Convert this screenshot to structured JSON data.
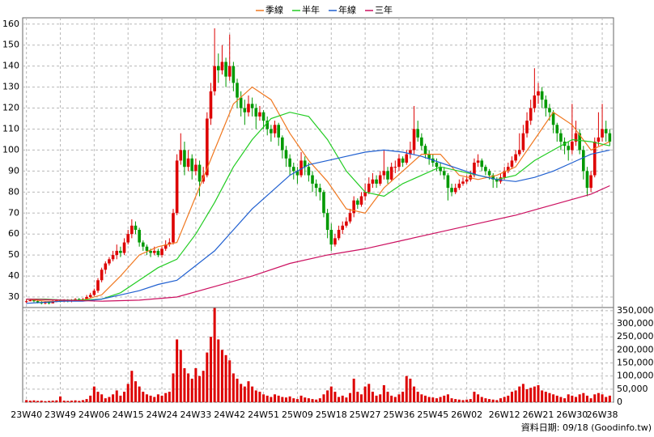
{
  "chart_data": {
    "type": "candlestick",
    "legend": "top",
    "grid": true,
    "up_color": "#dd0000",
    "down_color": "#009900",
    "xlim": [
      -1,
      156
    ],
    "xticks": [
      {
        "value": 0,
        "label": "23W40"
      },
      {
        "value": 9,
        "label": "23W49"
      },
      {
        "value": 18,
        "label": "24W06"
      },
      {
        "value": 27,
        "label": "24W15"
      },
      {
        "value": 36,
        "label": "24W24"
      },
      {
        "value": 45,
        "label": "24W33"
      },
      {
        "value": 54,
        "label": "24W42"
      },
      {
        "value": 63,
        "label": "24W51"
      },
      {
        "value": 72,
        "label": "25W09"
      },
      {
        "value": 81,
        "label": "25W18"
      },
      {
        "value": 90,
        "label": "25W27"
      },
      {
        "value": 99,
        "label": "25W36"
      },
      {
        "value": 108,
        "label": "25W45"
      },
      {
        "value": 117,
        "label": "26W02"
      },
      {
        "value": 127,
        "label": "26W12"
      },
      {
        "value": 136,
        "label": "26W21"
      },
      {
        "value": 145,
        "label": "26W30"
      },
      {
        "value": 153,
        "label": "26W38"
      }
    ],
    "ylim": [
      25,
      163
    ],
    "yticks": [
      30,
      40,
      50,
      60,
      70,
      80,
      90,
      100,
      110,
      120,
      130,
      140,
      150,
      160
    ],
    "candles": [
      [
        28,
        29,
        27,
        28
      ],
      [
        28,
        29,
        28,
        28.5
      ],
      [
        28.5,
        29,
        27.5,
        28
      ],
      [
        28,
        28.5,
        27,
        27.5
      ],
      [
        27.5,
        28,
        26.5,
        27
      ],
      [
        27,
        28,
        26.5,
        27.5
      ],
      [
        27.5,
        28,
        26.5,
        27
      ],
      [
        27,
        28.5,
        27,
        28
      ],
      [
        28,
        29,
        27.5,
        28.5
      ],
      [
        28.5,
        29,
        27.5,
        28
      ],
      [
        28,
        29,
        27.5,
        28.5
      ],
      [
        28.5,
        29,
        27.5,
        28
      ],
      [
        28,
        29,
        27.5,
        28.5
      ],
      [
        28.5,
        29.5,
        28,
        29
      ],
      [
        29,
        29.5,
        28,
        28.5
      ],
      [
        28.5,
        29.5,
        28,
        29
      ],
      [
        29,
        31,
        28.5,
        30
      ],
      [
        30,
        32,
        29.5,
        31
      ],
      [
        31,
        34,
        30.5,
        33
      ],
      [
        33,
        39,
        32,
        38
      ],
      [
        38,
        44,
        37,
        43
      ],
      [
        43,
        47,
        41,
        46
      ],
      [
        46,
        49,
        45,
        48
      ],
      [
        48,
        52,
        47,
        50
      ],
      [
        50,
        55,
        48,
        52
      ],
      [
        52,
        54,
        49,
        51
      ],
      [
        51,
        58,
        50,
        56
      ],
      [
        56,
        62,
        55,
        60
      ],
      [
        60,
        67,
        58,
        64
      ],
      [
        64,
        66,
        60,
        62
      ],
      [
        62,
        63,
        54,
        56
      ],
      [
        56,
        57,
        52,
        54
      ],
      [
        54,
        55,
        50,
        52
      ],
      [
        52,
        53,
        49,
        51
      ],
      [
        51,
        54,
        50,
        52
      ],
      [
        52,
        53,
        49,
        50
      ],
      [
        50,
        54,
        49,
        53
      ],
      [
        53,
        57,
        52,
        55
      ],
      [
        55,
        58,
        54,
        56
      ],
      [
        56,
        72,
        55,
        70
      ],
      [
        70,
        98,
        69,
        95
      ],
      [
        95,
        108,
        93,
        100
      ],
      [
        100,
        104,
        88,
        92
      ],
      [
        92,
        100,
        90,
        96
      ],
      [
        96,
        98,
        86,
        90
      ],
      [
        90,
        96,
        88,
        93
      ],
      [
        93,
        95,
        78,
        85
      ],
      [
        85,
        92,
        84,
        88
      ],
      [
        88,
        118,
        87,
        115
      ],
      [
        115,
        132,
        112,
        128
      ],
      [
        128,
        158,
        126,
        140
      ],
      [
        140,
        146,
        132,
        138
      ],
      [
        138,
        150,
        136,
        142
      ],
      [
        142,
        144,
        130,
        135
      ],
      [
        135,
        155,
        133,
        140
      ],
      [
        140,
        142,
        128,
        132
      ],
      [
        132,
        134,
        120,
        125
      ],
      [
        125,
        128,
        116,
        120
      ],
      [
        120,
        124,
        112,
        118
      ],
      [
        118,
        126,
        116,
        122
      ],
      [
        122,
        125,
        116,
        120
      ],
      [
        120,
        122,
        110,
        116
      ],
      [
        116,
        121,
        114,
        118
      ],
      [
        118,
        119,
        110,
        114
      ],
      [
        114,
        116,
        107,
        110
      ],
      [
        110,
        112,
        104,
        108
      ],
      [
        108,
        114,
        106,
        112
      ],
      [
        112,
        113,
        102,
        106
      ],
      [
        106,
        107,
        96,
        100
      ],
      [
        100,
        102,
        92,
        96
      ],
      [
        96,
        98,
        88,
        92
      ],
      [
        92,
        94,
        86,
        90
      ],
      [
        90,
        92,
        84,
        88
      ],
      [
        88,
        99,
        87,
        95
      ],
      [
        95,
        97,
        88,
        92
      ],
      [
        92,
        94,
        85,
        88
      ],
      [
        88,
        90,
        80,
        84
      ],
      [
        84,
        86,
        78,
        82
      ],
      [
        82,
        84,
        76,
        80
      ],
      [
        80,
        81,
        68,
        70
      ],
      [
        70,
        72,
        58,
        62
      ],
      [
        62,
        65,
        52,
        55
      ],
      [
        55,
        60,
        54,
        58
      ],
      [
        58,
        64,
        57,
        62
      ],
      [
        62,
        66,
        60,
        64
      ],
      [
        64,
        68,
        63,
        66
      ],
      [
        66,
        72,
        65,
        70
      ],
      [
        70,
        78,
        68,
        76
      ],
      [
        76,
        77,
        72,
        74
      ],
      [
        74,
        80,
        73,
        78
      ],
      [
        78,
        84,
        76,
        80
      ],
      [
        80,
        87,
        79,
        84
      ],
      [
        84,
        89,
        82,
        86
      ],
      [
        86,
        88,
        82,
        84
      ],
      [
        84,
        90,
        83,
        88
      ],
      [
        88,
        100,
        86,
        90
      ],
      [
        90,
        92,
        84,
        86
      ],
      [
        86,
        94,
        85,
        92
      ],
      [
        92,
        95,
        89,
        92
      ],
      [
        92,
        98,
        90,
        96
      ],
      [
        96,
        97,
        92,
        94
      ],
      [
        94,
        100,
        93,
        98
      ],
      [
        98,
        104,
        96,
        100
      ],
      [
        100,
        121,
        98,
        110
      ],
      [
        110,
        114,
        104,
        106
      ],
      [
        106,
        108,
        100,
        102
      ],
      [
        102,
        103,
        96,
        98
      ],
      [
        98,
        100,
        93,
        96
      ],
      [
        96,
        98,
        92,
        94
      ],
      [
        94,
        96,
        90,
        92
      ],
      [
        92,
        94,
        88,
        90
      ],
      [
        90,
        92,
        86,
        88
      ],
      [
        88,
        89,
        76,
        82
      ],
      [
        82,
        84,
        78,
        80
      ],
      [
        80,
        84,
        79,
        82
      ],
      [
        82,
        86,
        81,
        84
      ],
      [
        84,
        87,
        83,
        85
      ],
      [
        85,
        88,
        84,
        86
      ],
      [
        86,
        90,
        85,
        88
      ],
      [
        88,
        96,
        87,
        94
      ],
      [
        94,
        98,
        92,
        95
      ],
      [
        95,
        96,
        90,
        92
      ],
      [
        92,
        93,
        88,
        90
      ],
      [
        90,
        91,
        86,
        88
      ],
      [
        88,
        89,
        82,
        86
      ],
      [
        86,
        87,
        82,
        85
      ],
      [
        85,
        89,
        84,
        87
      ],
      [
        87,
        92,
        86,
        90
      ],
      [
        90,
        94,
        89,
        92
      ],
      [
        92,
        97,
        91,
        95
      ],
      [
        95,
        100,
        94,
        98
      ],
      [
        98,
        108,
        97,
        100
      ],
      [
        100,
        112,
        99,
        108
      ],
      [
        108,
        118,
        106,
        114
      ],
      [
        114,
        124,
        112,
        120
      ],
      [
        120,
        139,
        118,
        126
      ],
      [
        126,
        132,
        122,
        128
      ],
      [
        128,
        130,
        120,
        124
      ],
      [
        124,
        126,
        116,
        120
      ],
      [
        120,
        122,
        114,
        118
      ],
      [
        118,
        119,
        108,
        112
      ],
      [
        112,
        113,
        104,
        108
      ],
      [
        108,
        110,
        100,
        104
      ],
      [
        104,
        106,
        98,
        102
      ],
      [
        102,
        104,
        95,
        100
      ],
      [
        100,
        122,
        98,
        104
      ],
      [
        104,
        114,
        102,
        108
      ],
      [
        108,
        110,
        98,
        100
      ],
      [
        100,
        102,
        86,
        90
      ],
      [
        90,
        92,
        78,
        82
      ],
      [
        82,
        90,
        80,
        88
      ],
      [
        88,
        106,
        87,
        104
      ],
      [
        104,
        118,
        102,
        106
      ],
      [
        106,
        122,
        104,
        110
      ],
      [
        110,
        114,
        104,
        108
      ],
      [
        108,
        110,
        102,
        104
      ]
    ],
    "series": [
      {
        "name": "季線",
        "color": "#f07820",
        "x": [
          0,
          5,
          10,
          15,
          20,
          25,
          30,
          35,
          40,
          45,
          50,
          55,
          60,
          65,
          70,
          75,
          80,
          85,
          90,
          95,
          100,
          105,
          110,
          115,
          120,
          125,
          130,
          135,
          140,
          145,
          150,
          155
        ],
        "values": [
          29,
          28,
          28,
          28.5,
          31,
          40,
          50,
          54,
          56,
          78,
          100,
          122,
          130,
          124,
          108,
          95,
          85,
          72,
          70,
          82,
          90,
          98,
          98,
          88,
          86,
          88,
          92,
          105,
          118,
          112,
          100,
          104
        ]
      },
      {
        "name": "半年",
        "color": "#22cc22",
        "x": [
          0,
          5,
          10,
          15,
          20,
          25,
          30,
          35,
          40,
          45,
          50,
          55,
          60,
          65,
          70,
          75,
          80,
          85,
          90,
          95,
          100,
          105,
          110,
          115,
          120,
          125,
          130,
          135,
          140,
          145,
          150,
          155
        ],
        "values": [
          29,
          29,
          28.5,
          28.5,
          29,
          32,
          38,
          44,
          48,
          60,
          75,
          92,
          105,
          115,
          118,
          116,
          105,
          90,
          80,
          78,
          84,
          88,
          92,
          90,
          88,
          86,
          88,
          95,
          100,
          105,
          104,
          102
        ]
      },
      {
        "name": "年線",
        "color": "#1f5fd0",
        "x": [
          0,
          5,
          10,
          15,
          20,
          25,
          30,
          35,
          40,
          45,
          50,
          55,
          60,
          65,
          70,
          75,
          80,
          85,
          90,
          95,
          100,
          105,
          110,
          115,
          120,
          125,
          130,
          135,
          140,
          145,
          150,
          155
        ],
        "values": [
          27,
          27.5,
          28,
          28,
          29,
          31,
          33,
          36,
          38,
          45,
          52,
          62,
          72,
          80,
          88,
          93,
          95,
          97,
          99,
          100,
          99,
          97,
          94,
          91,
          88,
          86,
          85,
          87,
          90,
          94,
          98,
          100
        ]
      },
      {
        "name": "三年",
        "color": "#cc1060",
        "x": [
          0,
          10,
          20,
          30,
          40,
          50,
          60,
          70,
          80,
          90,
          100,
          110,
          120,
          130,
          140,
          150,
          155
        ],
        "values": [
          29,
          28.5,
          28,
          28.5,
          30,
          35,
          40,
          46,
          50,
          53,
          57,
          61,
          65,
          69,
          74,
          79,
          83
        ]
      }
    ],
    "volume": {
      "color": "#dd0000",
      "ylim": [
        0,
        362000
      ],
      "yticks": [
        {
          "value": 0,
          "label": "0"
        },
        {
          "value": 50000,
          "label": "50,000"
        },
        {
          "value": 100000,
          "label": "100,000"
        },
        {
          "value": 150000,
          "label": "150,000"
        },
        {
          "value": 200000,
          "label": "200,000"
        },
        {
          "value": 250000,
          "label": "250,000"
        },
        {
          "value": 300000,
          "label": "300,000"
        },
        {
          "value": 350000,
          "label": "350,000"
        }
      ],
      "values": [
        8000,
        6000,
        7000,
        5000,
        6000,
        4000,
        5000,
        6000,
        7000,
        22000,
        6000,
        5000,
        6000,
        7000,
        5000,
        8000,
        12000,
        25000,
        60000,
        40000,
        30000,
        15000,
        20000,
        30000,
        45000,
        25000,
        40000,
        70000,
        120000,
        80000,
        60000,
        40000,
        30000,
        25000,
        20000,
        30000,
        25000,
        35000,
        40000,
        110000,
        240000,
        200000,
        130000,
        110000,
        90000,
        130000,
        100000,
        120000,
        190000,
        250000,
        360000,
        240000,
        200000,
        180000,
        160000,
        110000,
        90000,
        70000,
        60000,
        80000,
        60000,
        45000,
        40000,
        30000,
        25000,
        20000,
        30000,
        25000,
        20000,
        18000,
        22000,
        15000,
        12000,
        25000,
        18000,
        15000,
        12000,
        10000,
        15000,
        30000,
        45000,
        60000,
        40000,
        20000,
        25000,
        18000,
        35000,
        90000,
        40000,
        30000,
        60000,
        70000,
        40000,
        25000,
        30000,
        65000,
        40000,
        25000,
        20000,
        30000,
        40000,
        100000,
        90000,
        60000,
        40000,
        30000,
        25000,
        20000,
        18000,
        15000,
        20000,
        25000,
        30000,
        15000,
        12000,
        10000,
        8000,
        10000,
        12000,
        40000,
        30000,
        20000,
        15000,
        12000,
        10000,
        8000,
        15000,
        20000,
        25000,
        40000,
        45000,
        60000,
        70000,
        50000,
        55000,
        60000,
        65000,
        45000,
        40000,
        35000,
        30000,
        25000,
        20000,
        15000,
        30000,
        25000,
        20000,
        30000,
        35000,
        25000,
        15000,
        30000,
        35000,
        30000,
        20000,
        25000
      ]
    },
    "footer": "資料日期: 09/18 (Goodinfo.tw)"
  }
}
